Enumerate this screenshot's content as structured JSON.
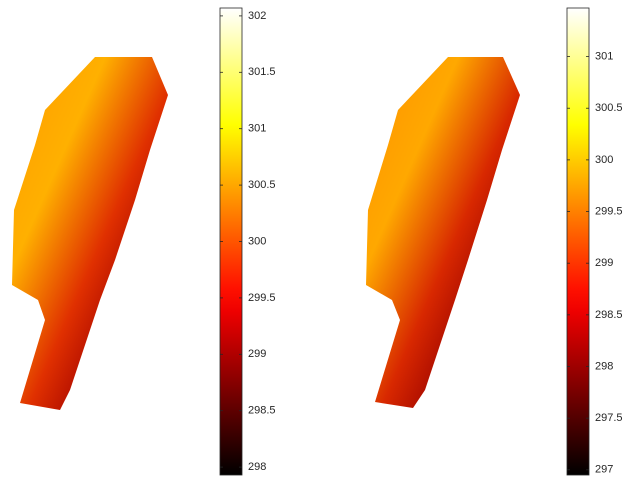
{
  "chart_data": [
    {
      "type": "heatmap",
      "colormap": "hot",
      "ylim": [
        297.93,
        302.07
      ],
      "yticks": [
        298,
        298.5,
        299,
        299.5,
        300,
        300.5,
        301,
        301.5,
        302
      ]
    },
    {
      "type": "heatmap",
      "colormap": "hot",
      "ylim": [
        296.95,
        301.47
      ],
      "yticks": [
        297,
        297.5,
        298,
        298.5,
        299,
        299.5,
        300,
        300.5,
        301
      ]
    }
  ]
}
